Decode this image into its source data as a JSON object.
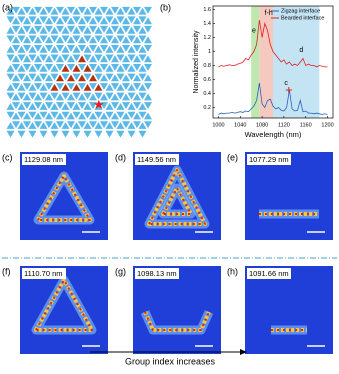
{
  "panels": [
    {
      "label": "(a)"
    },
    {
      "label": "(b)"
    }
  ],
  "images": [
    {
      "label": "(c)",
      "wavelength": "1129.08 nm"
    },
    {
      "label": "(d)",
      "wavelength": "1149.56 nm"
    },
    {
      "label": "(e)",
      "wavelength": "1077.29 nm"
    },
    {
      "label": "(f)",
      "wavelength": "1110.70 nm"
    },
    {
      "label": "(g)",
      "wavelength": "1098.13 nm"
    },
    {
      "label": "(h)",
      "wavelength": "1091.66 nm"
    }
  ],
  "arrow_text": "Group index increases",
  "chart_data": {
    "type": "line",
    "x_label": "Wavelength (nm)",
    "y_label": "Normalized intensity",
    "xlim": [
      990,
      1210
    ],
    "xticks": [
      1000,
      1040,
      1080,
      1120,
      1160,
      1200
    ],
    "ylim": [
      0.05,
      1.65
    ],
    "yticks": [
      0.2,
      0.4,
      0.6,
      0.8,
      1.0,
      1.2,
      1.4,
      1.6
    ],
    "legend": "upper right",
    "bands": [
      {
        "range": [
          1060,
          1075
        ],
        "color": "#bfe8b0"
      },
      {
        "range": [
          1075,
          1100
        ],
        "color": "#f6c9c0"
      },
      {
        "range": [
          1100,
          1185
        ],
        "color": "#c4e4f4"
      }
    ],
    "annotations": [
      "e",
      "f-h",
      "c",
      "d"
    ],
    "x": [
      1000,
      1005,
      1010,
      1015,
      1020,
      1025,
      1030,
      1035,
      1040,
      1045,
      1050,
      1055,
      1060,
      1065,
      1070,
      1075,
      1080,
      1085,
      1090,
      1095,
      1100,
      1105,
      1110,
      1115,
      1120,
      1125,
      1130,
      1135,
      1140,
      1145,
      1150,
      1155,
      1160,
      1165,
      1170,
      1175,
      1180,
      1185,
      1190,
      1195,
      1200
    ],
    "series": [
      {
        "name": "Zigzag interface",
        "color": "#2a62b8",
        "values": [
          0.1,
          0.12,
          0.11,
          0.12,
          0.12,
          0.13,
          0.12,
          0.13,
          0.14,
          0.13,
          0.15,
          0.14,
          0.18,
          0.22,
          0.3,
          0.55,
          0.25,
          0.2,
          0.3,
          0.32,
          0.22,
          0.18,
          0.2,
          0.16,
          0.15,
          0.2,
          0.45,
          0.18,
          0.15,
          0.16,
          0.3,
          0.14,
          0.15,
          0.12,
          0.12,
          0.11,
          0.12,
          0.11,
          0.1,
          0.11,
          0.1
        ]
      },
      {
        "name": "Bearded interface",
        "color": "#e02020",
        "values": [
          0.78,
          0.8,
          0.79,
          0.8,
          0.81,
          0.8,
          0.8,
          0.82,
          0.83,
          0.85,
          0.9,
          0.88,
          0.95,
          1.0,
          1.1,
          1.45,
          1.2,
          1.4,
          1.3,
          1.1,
          1.0,
          0.95,
          0.9,
          0.85,
          0.88,
          0.82,
          0.85,
          0.8,
          0.82,
          0.8,
          0.85,
          0.9,
          0.8,
          0.82,
          0.8,
          0.8,
          0.78,
          0.8,
          0.79,
          0.78,
          0.78
        ]
      }
    ]
  }
}
